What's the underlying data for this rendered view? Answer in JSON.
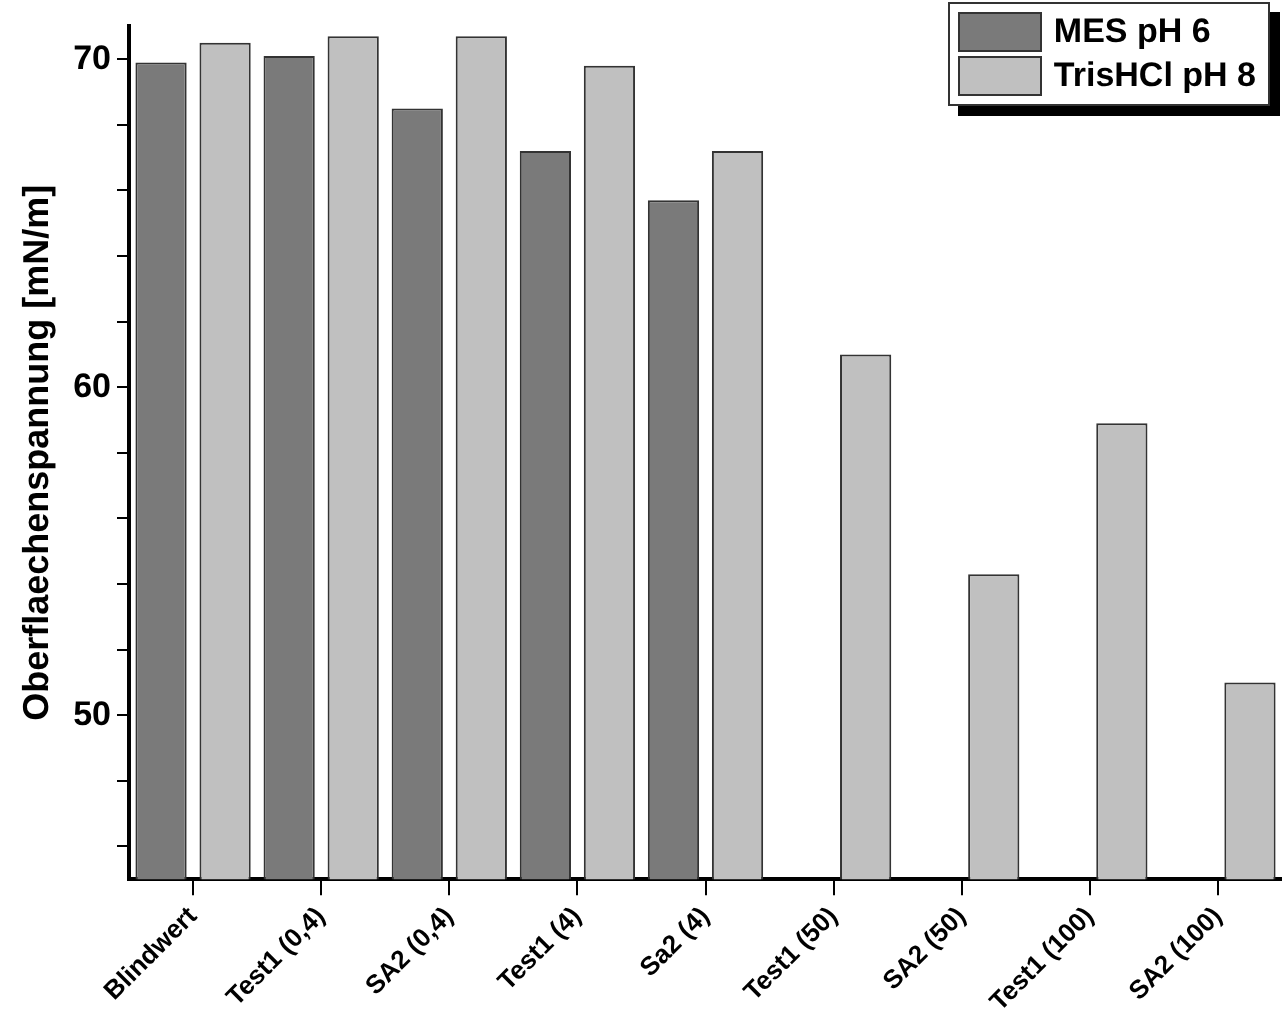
{
  "chart_data": {
    "type": "bar",
    "ylabel": "Oberflaechenspannung [mN/m]",
    "categories": [
      "Blindwert",
      "Test1 (0,4)",
      "SA2 (0,4)",
      "Test1 (4)",
      "Sa2 (4)",
      "Test1 (50)",
      "SA2 (50)",
      "Test1 (100)",
      "SA2 (100)"
    ],
    "series": [
      {
        "name": "MES pH 6",
        "color": "#7a7a7a",
        "values": [
          69.9,
          70.1,
          68.5,
          67.2,
          65.7,
          null,
          null,
          null,
          null
        ]
      },
      {
        "name": "TrisHCl pH 8",
        "color": "#c0c0c0",
        "values": [
          70.5,
          70.7,
          70.7,
          69.8,
          67.2,
          61.0,
          54.3,
          58.9,
          51.0
        ]
      }
    ],
    "ylim": [
      45,
      71
    ],
    "yticks": [
      {
        "value": 46,
        "label": null
      },
      {
        "value": 48,
        "label": null
      },
      50,
      {
        "value": 52,
        "label": null
      },
      {
        "value": 54,
        "label": null
      },
      {
        "value": 56,
        "label": null
      },
      {
        "value": 58,
        "label": null
      },
      60,
      {
        "value": 62,
        "label": null
      },
      {
        "value": 64,
        "label": null
      },
      {
        "value": 66,
        "label": null
      },
      {
        "value": 68,
        "label": null
      },
      70
    ],
    "grid": false,
    "legend": "top right"
  }
}
